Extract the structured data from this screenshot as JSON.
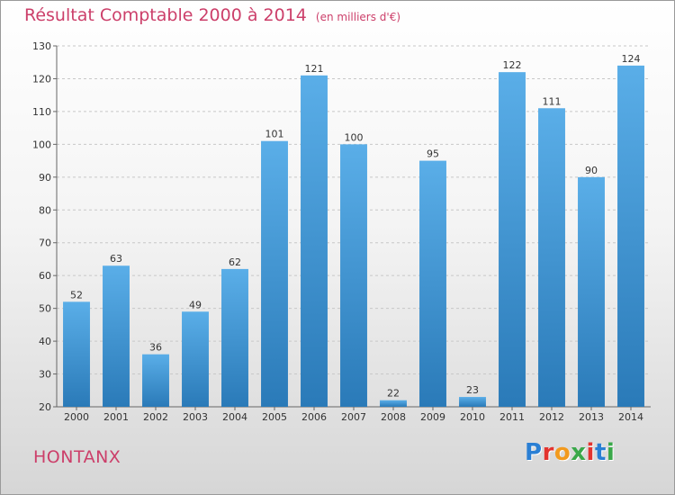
{
  "header": {
    "title": "Résultat Comptable 2000 à 2014",
    "subtitle": "(en milliers d'€)"
  },
  "footer": {
    "place": "HONTANX",
    "logo_text": "Proxiti",
    "logo_colors": [
      "#2a7fd4",
      "#e3342f",
      "#f29a1e",
      "#3aa84a",
      "#e3342f",
      "#2a7fd4",
      "#3aa84a"
    ]
  },
  "chart_data": {
    "type": "bar",
    "title": "Résultat Comptable 2000 à 2014",
    "subtitle": "(en milliers d'€)",
    "categories": [
      "2000",
      "2001",
      "2002",
      "2003",
      "2004",
      "2005",
      "2006",
      "2007",
      "2008",
      "2009",
      "2010",
      "2011",
      "2012",
      "2013",
      "2014"
    ],
    "values": [
      52,
      63,
      36,
      49,
      62,
      101,
      121,
      100,
      22,
      95,
      23,
      122,
      111,
      90,
      124
    ],
    "ylim": [
      20,
      130
    ],
    "yticks": [
      20,
      30,
      40,
      50,
      60,
      70,
      80,
      90,
      100,
      110,
      120,
      130
    ],
    "grid": true,
    "bar_color_top": "#5aaee8",
    "bar_color_bottom": "#2a7ab8",
    "grid_color": "#c8c8c8"
  }
}
